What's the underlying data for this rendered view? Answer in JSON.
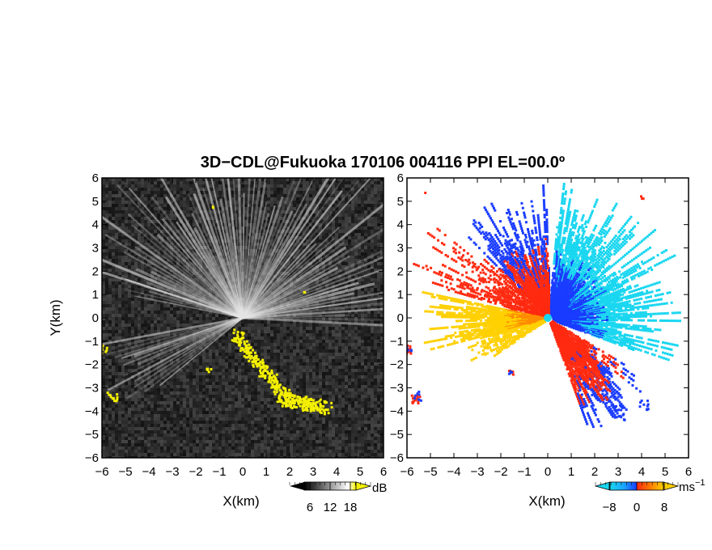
{
  "title": "3D−CDL@Fukuoka 170106 004116 PPI EL=00.0º",
  "chart_data": [
    {
      "type": "heatmap",
      "panel": "reflectivity",
      "xlabel": "X(km)",
      "ylabel": "Y(km)",
      "xlim": [
        -6,
        6
      ],
      "ylim": [
        -6,
        6
      ],
      "xticks": [
        "−6",
        "−5",
        "−4",
        "−3",
        "−2",
        "−1",
        "0",
        "1",
        "2",
        "3",
        "4",
        "5",
        "6"
      ],
      "yticks": [
        "6",
        "5",
        "4",
        "3",
        "2",
        "1",
        "0",
        "−1",
        "−2",
        "−3",
        "−4",
        "−5",
        "−6"
      ],
      "colorbar": {
        "unit": "dB",
        "ticks": [
          "6",
          "12",
          "18"
        ],
        "range": [
          0,
          24
        ]
      },
      "colors": {
        "background": "#2a2a2a",
        "rays": "#e0e0e0",
        "echo": "#f4f000"
      }
    },
    {
      "type": "heatmap",
      "panel": "doppler-velocity",
      "xlabel": "X(km)",
      "xlim": [
        -6,
        6
      ],
      "ylim": [
        -6,
        6
      ],
      "xticks": [
        "−6",
        "−5",
        "−4",
        "−3",
        "−2",
        "−1",
        "0",
        "1",
        "2",
        "3",
        "4",
        "5",
        "6"
      ],
      "yticks": [
        "6",
        "5",
        "4",
        "3",
        "2",
        "1",
        "0",
        "−1",
        "−2",
        "−3",
        "−4",
        "−5",
        "−6"
      ],
      "colorbar": {
        "unit": "ms",
        "unit_sup": "−1",
        "ticks": [
          "−8",
          "0",
          "8"
        ],
        "range": [
          -12,
          12
        ]
      },
      "colors": {
        "negative": "#1a3cff",
        "negative_far": "#19d6f0",
        "positive": "#ff2a10",
        "positive_far": "#ffd000"
      }
    }
  ]
}
